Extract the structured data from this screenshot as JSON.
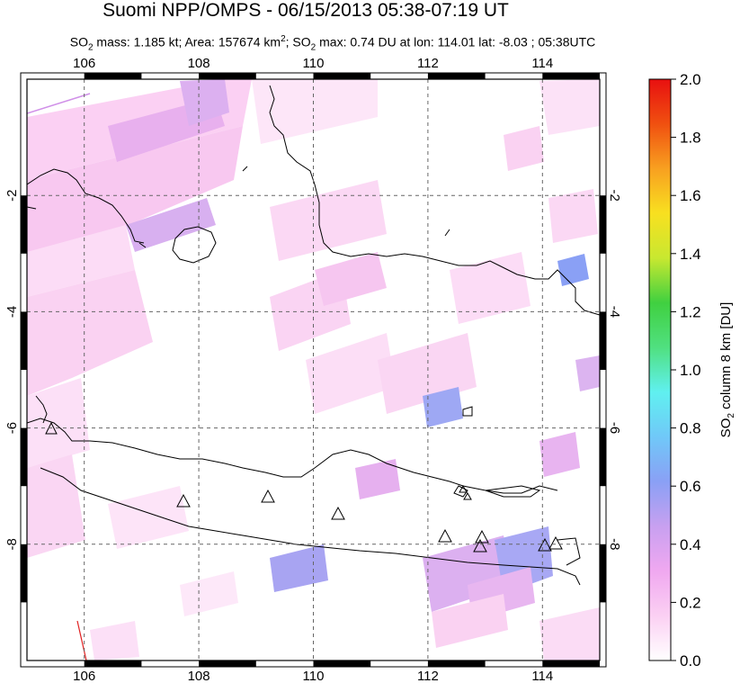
{
  "header": {
    "title": "Suomi NPP/OMPS - 06/15/2013 05:38-07:19 UT",
    "subtitle_parts": [
      "SO",
      "2",
      " mass: 1.185 kt; Area: 157674 km",
      "2",
      "; SO",
      "2",
      " max: 0.74 DU at lon: 114.01 lat: -8.03 ; 05:38UTC"
    ]
  },
  "map": {
    "lon_range": [
      105,
      115
    ],
    "lat_range": [
      -10,
      0
    ],
    "lon_ticks": [
      "106",
      "108",
      "110",
      "112",
      "114"
    ],
    "lat_ticks": [
      "-2",
      "-4",
      "-6",
      "-8"
    ],
    "volcano_markers": 11
  },
  "colorbar": {
    "label_prefix": "SO",
    "label_sub": "2",
    "label_suffix": " column 8 km [DU]",
    "ticks": [
      "0.0",
      "0.2",
      "0.4",
      "0.6",
      "0.8",
      "1.0",
      "1.2",
      "1.4",
      "1.6",
      "1.8",
      "2.0"
    ],
    "colors": [
      "#ffffff",
      "#fbd0f3",
      "#f0a8f0",
      "#c8a0f0",
      "#8aa0f5",
      "#70c8f8",
      "#60f0f0",
      "#50e080",
      "#40d040",
      "#c8e830",
      "#f8e020",
      "#f8a020",
      "#f05010",
      "#e81010"
    ]
  }
}
